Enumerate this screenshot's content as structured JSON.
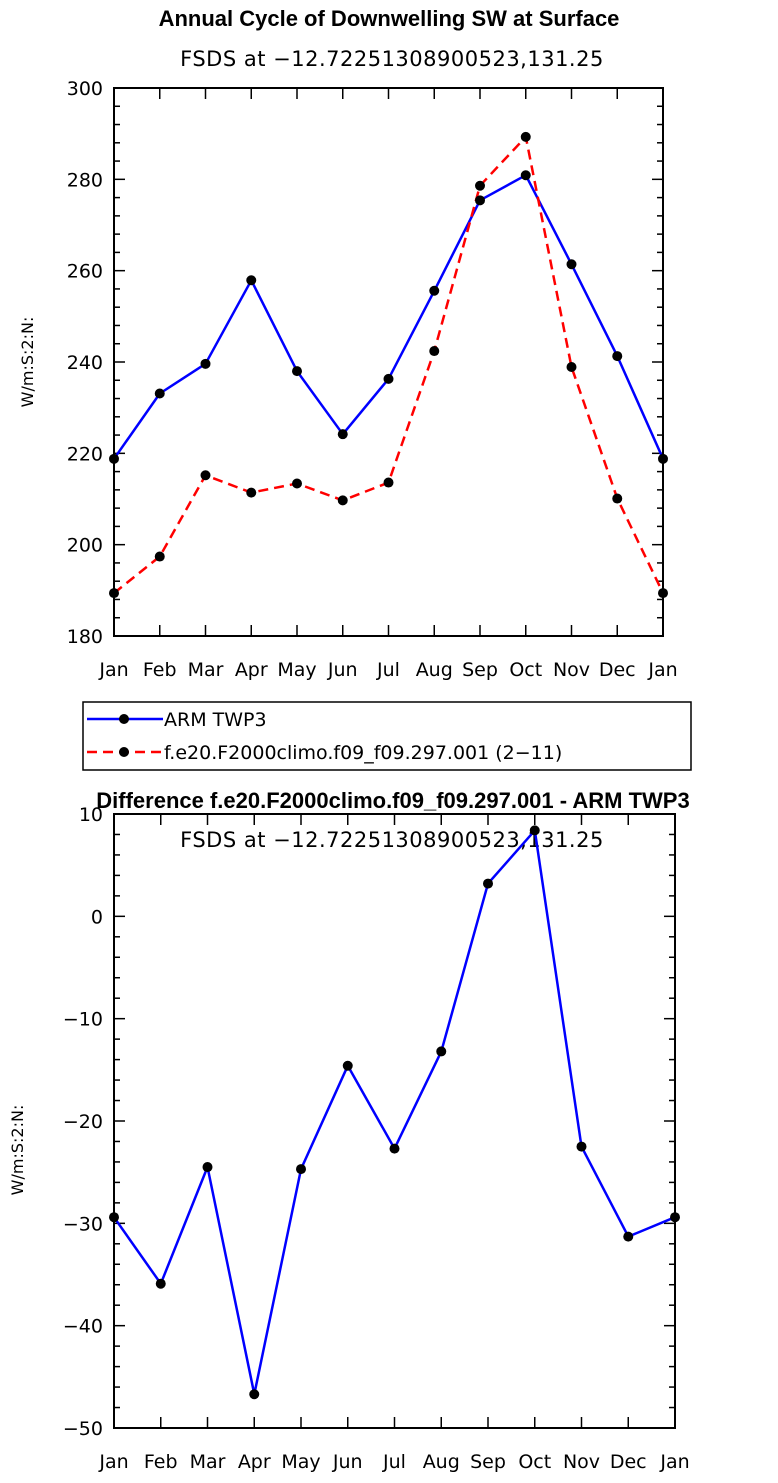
{
  "chart_data": [
    {
      "type": "line",
      "title": "Annual Cycle of Downwelling SW at Surface",
      "subtitle": "FSDS at −12.72251308900523,131.25",
      "xlabel": "",
      "ylabel": "W/m:S:2:N:",
      "categories": [
        "Jan",
        "Feb",
        "Mar",
        "Apr",
        "May",
        "Jun",
        "Jul",
        "Aug",
        "Sep",
        "Oct",
        "Nov",
        "Dec",
        "Jan"
      ],
      "ylim": [
        180,
        300
      ],
      "yticks": [
        180,
        200,
        220,
        240,
        260,
        280,
        300
      ],
      "ytick_labels": [
        "180",
        "200",
        "220",
        "240",
        "260",
        "280",
        "300"
      ],
      "series": [
        {
          "name": "ARM TWP3",
          "color": "#0000ff",
          "dash": "solid",
          "values": [
            218.8,
            233.1,
            239.6,
            257.9,
            238.0,
            224.2,
            236.3,
            255.6,
            275.4,
            280.9,
            261.4,
            241.3,
            218.8
          ]
        },
        {
          "name": "f.e20.F2000climo.f09_f09.297.001 (2−11)",
          "color": "#ff0000",
          "dash": "dashed",
          "values": [
            189.4,
            197.4,
            215.2,
            211.4,
            213.4,
            209.7,
            213.6,
            242.4,
            278.6,
            289.3,
            238.9,
            210.1,
            189.4
          ]
        }
      ],
      "legend": {
        "position": "below",
        "entries": [
          "ARM TWP3",
          "f.e20.F2000climo.f09_f09.297.001 (2−11)"
        ]
      }
    },
    {
      "type": "line",
      "title": "Difference f.e20.F2000climo.f09_f09.297.001 - ARM TWP3",
      "subtitle": "FSDS at −12.72251308900523,131.25",
      "xlabel": "",
      "ylabel": "W/m:S:2:N:",
      "categories": [
        "Jan",
        "Feb",
        "Mar",
        "Apr",
        "May",
        "Jun",
        "Jul",
        "Aug",
        "Sep",
        "Oct",
        "Nov",
        "Dec",
        "Jan"
      ],
      "ylim": [
        -50,
        10
      ],
      "yticks": [
        -50,
        -40,
        -30,
        -20,
        -10,
        0,
        10
      ],
      "ytick_labels": [
        "−50",
        "−40",
        "−30",
        "−20",
        "−10",
        "0",
        "10"
      ],
      "series": [
        {
          "name": "Difference",
          "color": "#0000ff",
          "dash": "solid",
          "values": [
            -29.4,
            -35.9,
            -24.5,
            -46.7,
            -24.7,
            -14.6,
            -22.7,
            -13.2,
            3.2,
            8.4,
            -22.5,
            -31.3,
            -29.4
          ]
        }
      ]
    }
  ]
}
